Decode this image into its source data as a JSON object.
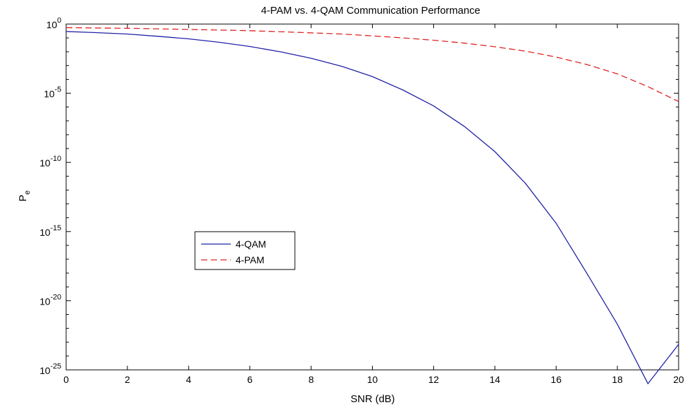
{
  "chart_data": {
    "type": "line",
    "title": "4-PAM vs. 4-QAM Communication Performance",
    "xlabel": "SNR (dB)",
    "ylabel": {
      "base": "P",
      "subscript": "e"
    },
    "xlim": [
      0,
      20
    ],
    "ylim": [
      1e-25,
      1
    ],
    "yscale": "log",
    "x_ticks": [
      0,
      2,
      4,
      6,
      8,
      10,
      12,
      14,
      16,
      18,
      20
    ],
    "y_ticks": [
      {
        "base": "10",
        "exp": "0",
        "value": 1
      },
      {
        "base": "10",
        "exp": "-5",
        "value": 1e-05
      },
      {
        "base": "10",
        "exp": "-10",
        "value": 1e-10
      },
      {
        "base": "10",
        "exp": "-15",
        "value": 1e-15
      },
      {
        "base": "10",
        "exp": "-20",
        "value": 1e-20
      },
      {
        "base": "10",
        "exp": "-25",
        "value": 1e-25
      }
    ],
    "grid": false,
    "legend_position": "center-left",
    "x": [
      0,
      1,
      2,
      3,
      4,
      5,
      6,
      7,
      8,
      9,
      10,
      11,
      12,
      13,
      14,
      15,
      16,
      17,
      18,
      19,
      20
    ],
    "series": [
      {
        "name": "4-QAM",
        "color": "#1f1fa6",
        "style": "solid",
        "values": [
          0.29,
          0.24,
          0.19,
          0.13,
          0.085,
          0.048,
          0.024,
          0.0098,
          0.0034,
          0.00088,
          0.00016,
          1.7e-05,
          1.2e-06,
          4e-08,
          6e-10,
          3e-12,
          4e-15,
          1e-18,
          2e-22,
          1e-26,
          7e-24
        ]
      },
      {
        "name": "4-PAM",
        "color": "#e02020",
        "style": "dashed",
        "values": [
          0.55,
          0.52,
          0.49,
          0.45,
          0.41,
          0.37,
          0.33,
          0.28,
          0.23,
          0.19,
          0.14,
          0.1,
          0.068,
          0.042,
          0.023,
          0.011,
          0.0041,
          0.0012,
          0.00025,
          3e-05,
          2.5e-06
        ]
      }
    ]
  },
  "legend_title": ""
}
